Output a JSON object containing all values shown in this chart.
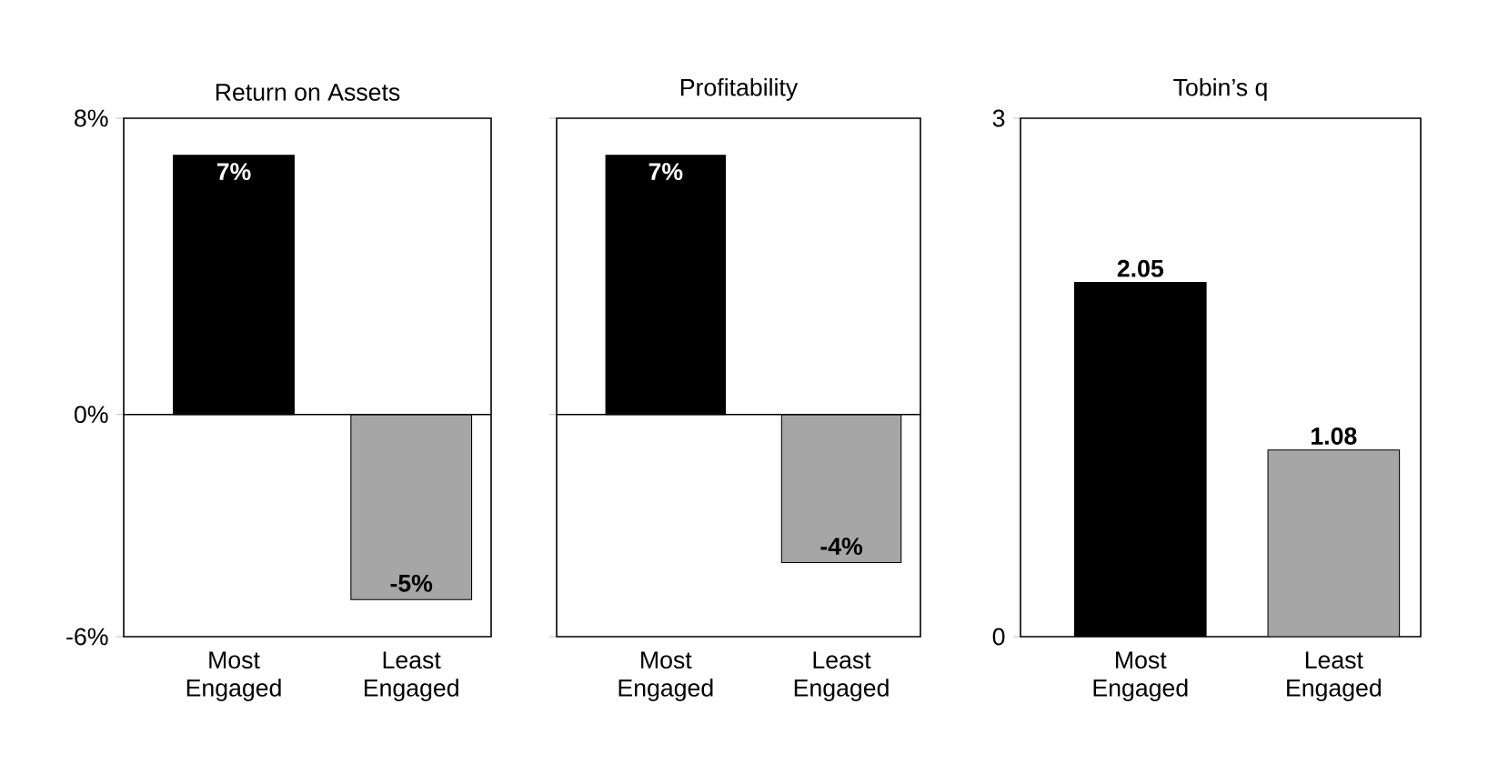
{
  "chart_data": [
    {
      "type": "bar",
      "title": "Return on Assets",
      "categories": [
        "Most Engaged",
        "Least Engaged"
      ],
      "values": [
        7,
        -5
      ],
      "colors": [
        "#000000",
        "#a6a6a6"
      ],
      "value_labels": [
        "7%",
        "-5%"
      ],
      "ylim": [
        -6,
        8
      ],
      "yticks": [
        {
          "value": -6,
          "label": "-6%"
        },
        {
          "value": 0,
          "label": "0%"
        },
        {
          "value": 8,
          "label": "8%"
        }
      ]
    },
    {
      "type": "bar",
      "title": "Profitability",
      "categories": [
        "Most Engaged",
        "Least Engaged"
      ],
      "values": [
        7,
        -4
      ],
      "colors": [
        "#000000",
        "#a6a6a6"
      ],
      "value_labels": [
        "7%",
        "-4%"
      ],
      "ylim": [
        -6,
        8
      ],
      "yticks": [
        {
          "value": -6,
          "label": null
        },
        {
          "value": 0,
          "label": null
        },
        {
          "value": 8,
          "label": null
        }
      ],
      "tick_labels": "x"
    },
    {
      "type": "bar",
      "title": "Tobin’s q",
      "categories": [
        "Most Engaged",
        "Least Engaged"
      ],
      "values": [
        2.05,
        1.08
      ],
      "colors": [
        "#000000",
        "#a6a6a6"
      ],
      "data_labels": true,
      "ylim": [
        0,
        3
      ],
      "yticks": [
        0,
        3
      ]
    }
  ]
}
